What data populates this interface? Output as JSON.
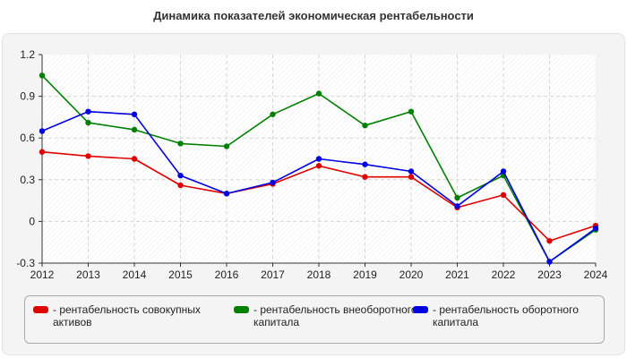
{
  "chart_data": {
    "type": "line",
    "title": "Динамика показателей экономическая рентабельности",
    "x": [
      "2012",
      "2013",
      "2014",
      "2015",
      "2016",
      "2017",
      "2018",
      "2019",
      "2020",
      "2021",
      "2022",
      "2023",
      "2024"
    ],
    "ylim": [
      -0.3,
      1.2
    ],
    "yticks": [
      "1.2",
      "0.9",
      "0.6",
      "0.3",
      "0",
      "-0.3"
    ],
    "grid": true,
    "legend_position": "bottom",
    "series": [
      {
        "name": "- рентабельность совокупных активов",
        "color": "#e00000",
        "values": [
          0.5,
          0.47,
          0.45,
          0.26,
          0.2,
          0.27,
          0.4,
          0.32,
          0.32,
          0.1,
          0.19,
          -0.14,
          -0.03
        ]
      },
      {
        "name": "- рентабельность внеоборотного капитала",
        "color": "#008000",
        "values": [
          1.05,
          0.71,
          0.66,
          0.56,
          0.54,
          0.77,
          0.92,
          0.69,
          0.79,
          0.17,
          0.33,
          -0.29,
          -0.06
        ]
      },
      {
        "name": "- рентабельность оборотного капитала",
        "color": "#0000e0",
        "values": [
          0.65,
          0.79,
          0.77,
          0.33,
          0.2,
          0.28,
          0.45,
          0.41,
          0.36,
          0.11,
          0.36,
          -0.29,
          -0.05
        ]
      }
    ]
  }
}
